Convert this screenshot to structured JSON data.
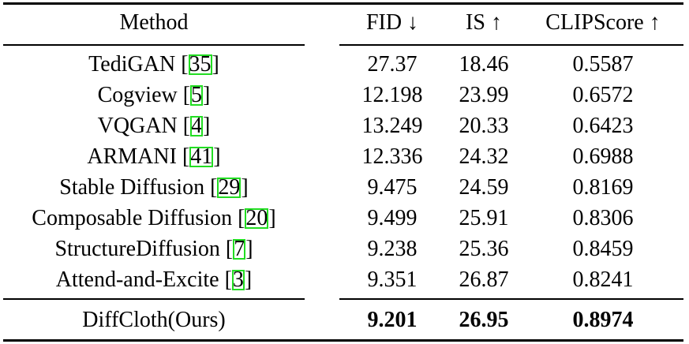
{
  "table": {
    "headers": {
      "method": "Method",
      "fid": "FID ↓",
      "is": "IS ↑",
      "clipscore": "CLIPScore ↑"
    },
    "rows": [
      {
        "method": "TediGAN",
        "ref": "35",
        "fid": "27.37",
        "is": "18.46",
        "clipscore": "0.5587"
      },
      {
        "method": "Cogview",
        "ref": "5",
        "fid": "12.198",
        "is": "23.99",
        "clipscore": "0.6572"
      },
      {
        "method": "VQGAN",
        "ref": "4",
        "fid": "13.249",
        "is": "20.33",
        "clipscore": "0.6423"
      },
      {
        "method": "ARMANI",
        "ref": "41",
        "fid": "12.336",
        "is": "24.32",
        "clipscore": "0.6988"
      },
      {
        "method": "Stable Diffusion ",
        "ref": "29",
        "fid": "9.475",
        "is": "24.59",
        "clipscore": "0.8169"
      },
      {
        "method": "Composable Diffusion",
        "ref": "20",
        "fid": "9.499",
        "is": "25.91",
        "clipscore": "0.8306"
      },
      {
        "method": "StructureDiffusion",
        "ref": "7",
        "fid": "9.238",
        "is": "25.36",
        "clipscore": "0.8459"
      },
      {
        "method": "Attend-and-Excite",
        "ref": "3",
        "fid": "9.351",
        "is": "26.87",
        "clipscore": "0.8241"
      }
    ],
    "ours": {
      "method": "DiffCloth(Ours)",
      "fid": "9.201",
      "is": "26.95",
      "clipscore": "0.8974"
    }
  },
  "colors": {
    "ref_box": "#22dd22"
  }
}
